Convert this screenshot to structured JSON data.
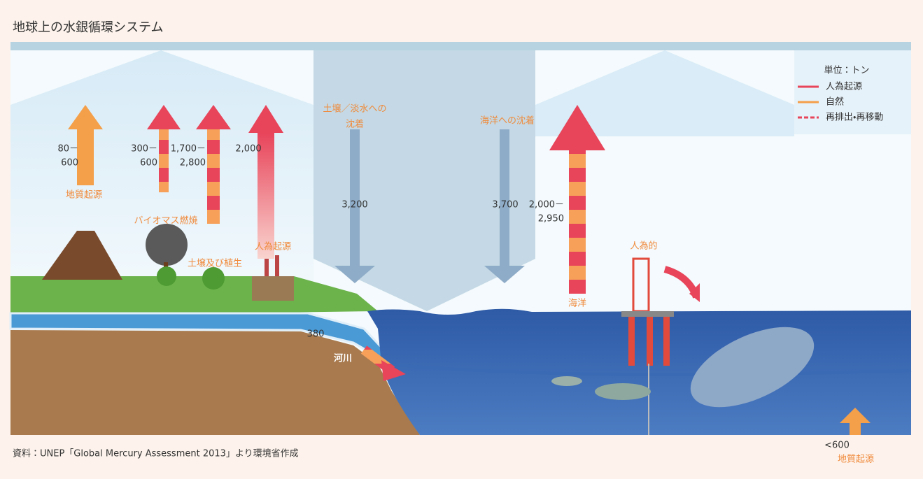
{
  "header": {
    "title": "地球上の水銀循環システム"
  },
  "legend": {
    "unit": "単位：トン",
    "items": [
      "人為起源",
      "自然",
      "再排出・再移動"
    ]
  },
  "sources": {
    "geologic_land": "地質起源",
    "biomass": "バイオマス燃焼",
    "soil_vegetation": "土壌及び植生",
    "anthropogenic_land": "人為起源",
    "ocean": "海洋",
    "anthropogenic_ocean": "人為的",
    "river": "河川",
    "geologic_ocean": "地質起源"
  },
  "deposition": {
    "land": [
      "土壌／淡水への",
      "沈着"
    ],
    "ocean": "海洋への沈着"
  },
  "flows": {
    "geologic": [
      "80－",
      "600"
    ],
    "biomass": [
      "300－",
      "600"
    ],
    "soil": [
      "1,700－",
      "2,800"
    ],
    "anthropogenic": "2,000",
    "land_deposition": "3,200",
    "ocean_deposition": "3,700",
    "ocean_emission": [
      "2,000－",
      "2,950"
    ],
    "river": "380",
    "seafloor": "<600"
  },
  "footer": {
    "source": "資料：UNEP「Global Mercury Assessment 2013」より環境省作成"
  }
}
